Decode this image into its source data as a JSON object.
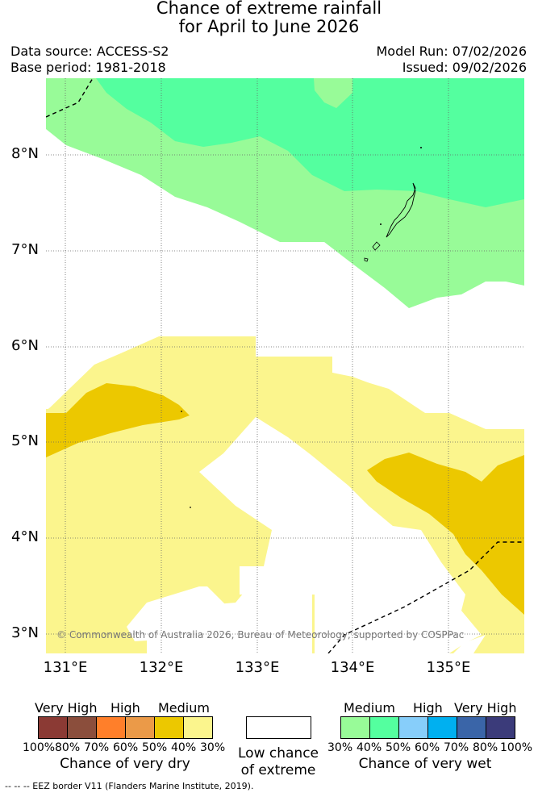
{
  "title": {
    "line1": "Chance of extreme rainfall",
    "line2": "for April to June 2026"
  },
  "meta": {
    "data_source": "Data source: ACCESS-S2",
    "base_period": "Base period: 1981-2018",
    "model_run": "Model Run: 07/02/2026",
    "issued": "Issued: 09/02/2026"
  },
  "map": {
    "lat_labels": [
      "8°N",
      "7°N",
      "6°N",
      "5°N",
      "4°N",
      "3°N"
    ],
    "lon_labels": [
      "131°E",
      "132°E",
      "133°E",
      "134°E",
      "135°E"
    ],
    "copyright": "© Commonwealth of Australia 2026, Bureau of Meteorology, supported by COSPPac"
  },
  "legend": {
    "dry": {
      "headers": [
        "Very High",
        "High",
        "Medium"
      ],
      "percent_labels": [
        "100%",
        "80%",
        "70%",
        "60%",
        "50%",
        "40%",
        "30%"
      ],
      "colors": [
        "#8b3a34",
        "#8b4e3c",
        "#ff7f2a",
        "#eb9a48",
        "#ecc800",
        "#fbf58d"
      ],
      "title": "Chance of very dry"
    },
    "low": {
      "line1": "Low chance",
      "line2": "of extreme",
      "color": "#ffffff"
    },
    "wet": {
      "headers": [
        "Medium",
        "High",
        "Very High"
      ],
      "percent_labels": [
        "30%",
        "40%",
        "50%",
        "60%",
        "70%",
        "80%",
        "100%"
      ],
      "colors": [
        "#98fb98",
        "#54ff9f",
        "#87cefa",
        "#00b0f0",
        "#3a65a8",
        "#3b3b7a"
      ],
      "title": "Chance of very wet"
    }
  },
  "footer": "-- -- -- EEZ border V11 (Flanders Marine Institute, 2019)."
}
